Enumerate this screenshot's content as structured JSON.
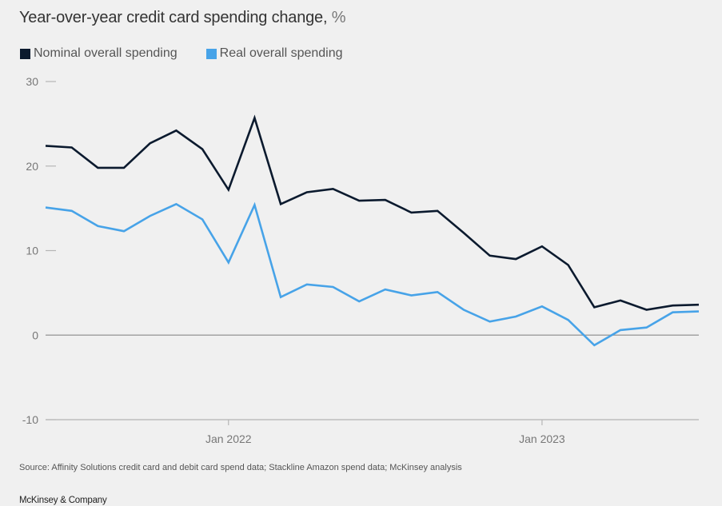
{
  "chart_data": {
    "type": "line",
    "title": "Year-over-year credit card spending change,",
    "title_unit": "%",
    "xlabel": "",
    "ylabel": "",
    "ylim": [
      -10,
      30
    ],
    "yticks": [
      30,
      20,
      10,
      0,
      -10
    ],
    "x": [
      "Jun 2021",
      "Jul 2021",
      "Aug 2021",
      "Sep 2021",
      "Oct 2021",
      "Nov 2021",
      "Dec 2021",
      "Jan 2022",
      "Feb 2022",
      "Mar 2022",
      "Apr 2022",
      "May 2022",
      "Jun 2022",
      "Jul 2022",
      "Aug 2022",
      "Sep 2022",
      "Oct 2022",
      "Nov 2022",
      "Dec 2022",
      "Jan 2023",
      "Feb 2023",
      "Mar 2023",
      "Apr 2023",
      "May 2023",
      "Jun 2023",
      "Jul 2023"
    ],
    "xticks": [
      {
        "index": 7,
        "label": "Jan 2022"
      },
      {
        "index": 19,
        "label": "Jan 2023"
      }
    ],
    "legend_position": "top-left",
    "grid": false,
    "series": [
      {
        "name": "Nominal overall spending",
        "color": "#0b1a2e",
        "values": [
          22.4,
          22.2,
          19.8,
          19.8,
          22.7,
          24.2,
          22.0,
          17.2,
          25.7,
          15.5,
          16.9,
          17.3,
          15.9,
          16.0,
          14.5,
          14.7,
          12.1,
          9.4,
          9.0,
          10.5,
          8.3,
          3.3,
          4.1,
          3.0,
          3.5,
          3.6
        ]
      },
      {
        "name": "Real overall spending",
        "color": "#47a3e8",
        "values": [
          15.1,
          14.7,
          12.9,
          12.3,
          14.1,
          15.5,
          13.7,
          8.6,
          15.4,
          4.5,
          6.0,
          5.7,
          4.0,
          5.4,
          4.7,
          5.1,
          3.0,
          1.6,
          2.2,
          3.4,
          1.8,
          -1.2,
          0.6,
          0.9,
          2.7,
          2.8
        ]
      }
    ]
  },
  "footer": {
    "source": "Source: Affinity Solutions credit card and debit card spend data; Stackline Amazon spend data; McKinsey analysis",
    "brand": "McKinsey & Company"
  }
}
